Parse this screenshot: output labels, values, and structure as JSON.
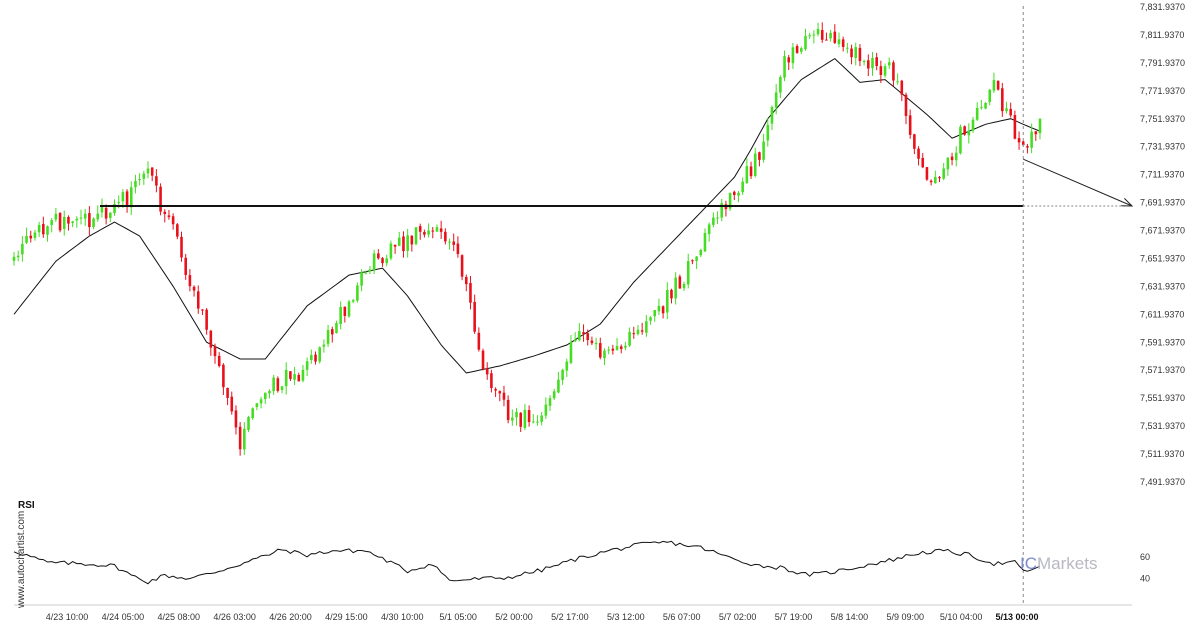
{
  "chart_data": {
    "type": "candlestick",
    "title": "",
    "xlabel": "",
    "ylabel": "",
    "ylim": [
      7491.937,
      7831.937
    ],
    "price_ticks": [
      "7,831.9370",
      "7,811.9370",
      "7,791.9370",
      "7,771.9370",
      "7,751.9370",
      "7,731.9370",
      "7,711.9370",
      "7,691.9370",
      "7,671.9370",
      "7,651.9370",
      "7,631.9370",
      "7,611.9370",
      "7,591.9370",
      "7,571.9370",
      "7,551.9370",
      "7,531.9370",
      "7,511.9370",
      "7,491.9370"
    ],
    "x_ticks": [
      "4/23 10:00",
      "4/24 05:00",
      "4/25 08:00",
      "4/26 03:00",
      "4/26 20:00",
      "4/29 15:00",
      "4/30 10:00",
      "5/1 05:00",
      "5/2 00:00",
      "5/2 17:00",
      "5/3 12:00",
      "5/6 07:00",
      "5/7 02:00",
      "5/7 19:00",
      "5/8 14:00",
      "5/9 09:00",
      "5/10 04:00",
      "5/13 00:00"
    ],
    "highlighted_x_tick": "5/13 00:00",
    "candle_count": 246,
    "anchors": [
      [
        0,
        7650
      ],
      [
        6,
        7675
      ],
      [
        16,
        7680
      ],
      [
        24,
        7685
      ],
      [
        32,
        7715
      ],
      [
        40,
        7655
      ],
      [
        46,
        7605
      ],
      [
        54,
        7520
      ],
      [
        60,
        7560
      ],
      [
        68,
        7570
      ],
      [
        74,
        7590
      ],
      [
        84,
        7645
      ],
      [
        92,
        7660
      ],
      [
        100,
        7675
      ],
      [
        106,
        7660
      ],
      [
        112,
        7570
      ],
      [
        118,
        7540
      ],
      [
        126,
        7535
      ],
      [
        134,
        7595
      ],
      [
        142,
        7580
      ],
      [
        148,
        7595
      ],
      [
        154,
        7615
      ],
      [
        160,
        7640
      ],
      [
        166,
        7670
      ],
      [
        172,
        7700
      ],
      [
        178,
        7725
      ],
      [
        184,
        7790
      ],
      [
        190,
        7810
      ],
      [
        196,
        7812
      ],
      [
        202,
        7795
      ],
      [
        206,
        7790
      ],
      [
        210,
        7785
      ],
      [
        214,
        7740
      ],
      [
        218,
        7705
      ],
      [
        222,
        7710
      ],
      [
        226,
        7740
      ],
      [
        230,
        7755
      ],
      [
        234,
        7775
      ],
      [
        238,
        7750
      ],
      [
        241,
        7730
      ],
      [
        245,
        7745
      ]
    ],
    "moving_average_anchors": [
      [
        0,
        7612
      ],
      [
        10,
        7650
      ],
      [
        18,
        7668
      ],
      [
        24,
        7678
      ],
      [
        30,
        7668
      ],
      [
        38,
        7632
      ],
      [
        46,
        7592
      ],
      [
        54,
        7580
      ],
      [
        60,
        7580
      ],
      [
        70,
        7618
      ],
      [
        80,
        7640
      ],
      [
        88,
        7645
      ],
      [
        94,
        7625
      ],
      [
        102,
        7590
      ],
      [
        108,
        7570
      ],
      [
        116,
        7575
      ],
      [
        124,
        7582
      ],
      [
        132,
        7590
      ],
      [
        140,
        7605
      ],
      [
        148,
        7635
      ],
      [
        156,
        7660
      ],
      [
        164,
        7685
      ],
      [
        172,
        7710
      ],
      [
        176,
        7730
      ],
      [
        180,
        7752
      ],
      [
        188,
        7780
      ],
      [
        196,
        7795
      ],
      [
        202,
        7778
      ],
      [
        208,
        7780
      ],
      [
        212,
        7770
      ],
      [
        218,
        7755
      ],
      [
        224,
        7738
      ],
      [
        232,
        7748
      ],
      [
        238,
        7752
      ],
      [
        241,
        7748
      ],
      [
        245,
        7743
      ]
    ],
    "support_level": 7689.5,
    "forecast": {
      "from_index": 241,
      "from_value": 7723,
      "to_value": 7689.5
    },
    "rsi": {
      "label": "RSI",
      "ticks": [
        "60",
        "40"
      ],
      "levels": [
        60,
        40
      ],
      "anchors": [
        [
          0,
          66
        ],
        [
          8,
          55
        ],
        [
          16,
          54
        ],
        [
          24,
          52
        ],
        [
          28,
          43
        ],
        [
          32,
          37
        ],
        [
          36,
          43
        ],
        [
          42,
          40
        ],
        [
          48,
          46
        ],
        [
          56,
          56
        ],
        [
          64,
          67
        ],
        [
          70,
          62
        ],
        [
          76,
          66
        ],
        [
          84,
          66
        ],
        [
          90,
          55
        ],
        [
          94,
          47
        ],
        [
          100,
          54
        ],
        [
          104,
          38
        ],
        [
          112,
          40
        ],
        [
          118,
          41
        ],
        [
          126,
          48
        ],
        [
          134,
          58
        ],
        [
          142,
          66
        ],
        [
          150,
          72
        ],
        [
          156,
          74
        ],
        [
          164,
          69
        ],
        [
          172,
          58
        ],
        [
          178,
          52
        ],
        [
          184,
          50
        ],
        [
          188,
          44
        ],
        [
          192,
          44
        ],
        [
          198,
          48
        ],
        [
          204,
          53
        ],
        [
          210,
          58
        ],
        [
          216,
          64
        ],
        [
          222,
          66
        ],
        [
          228,
          62
        ],
        [
          234,
          54
        ],
        [
          239,
          55
        ],
        [
          241,
          47
        ],
        [
          245,
          50
        ]
      ]
    },
    "colors": {
      "bull": "#44dd22",
      "bear": "#e8101a",
      "moving_average": "#111111",
      "support": "#111111",
      "grid": "#dddddd",
      "rsi": "#111111"
    }
  },
  "watermark": {
    "vertical_text": "www.autochartist.com",
    "brand_prefix": "IC",
    "brand_suffix": "Markets"
  }
}
